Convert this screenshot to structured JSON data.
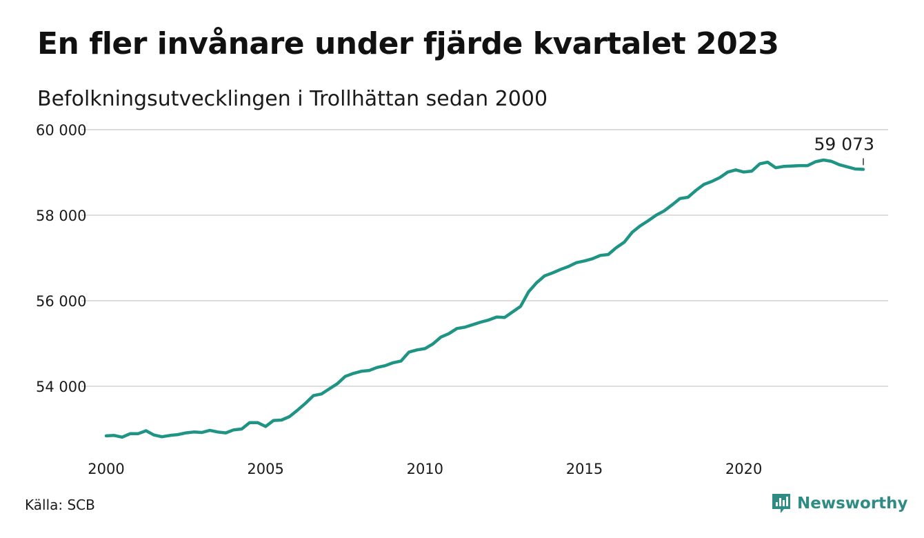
{
  "title": "En fler invånare under fjärde kvartalet 2023",
  "subtitle": "Befolkningsutvecklingen i Trollhättan sedan 2000",
  "source": "Källa: SCB",
  "brand": {
    "name": "Newsworthy",
    "icon": "newsworthy-logo-icon",
    "color": "#2f8c84"
  },
  "chart_data": {
    "type": "line",
    "title": "En fler invånare under fjärde kvartalet 2023",
    "subtitle": "Befolkningsutvecklingen i Trollhättan sedan 2000",
    "xlabel": "",
    "ylabel": "",
    "xlim": [
      2000,
      2024
    ],
    "ylim": [
      52500,
      60000
    ],
    "xticks": [
      2000,
      2005,
      2010,
      2015,
      2020
    ],
    "xtick_labels": [
      "2000",
      "2005",
      "2010",
      "2015",
      "2020"
    ],
    "yticks": [
      54000,
      56000,
      58000,
      60000
    ],
    "ytick_labels": [
      "54 000",
      "56 000",
      "58 000",
      "60 000"
    ],
    "grid": "horizontal",
    "line_color": "#1f9484",
    "annotation": {
      "x": 2023.75,
      "y": 59073,
      "label": "59 073"
    },
    "series": [
      {
        "x": [
          2000.0,
          2000.25,
          2000.5,
          2000.75,
          2001.0,
          2001.25,
          2001.5,
          2001.75,
          2002.0,
          2002.25,
          2002.5,
          2002.75,
          2003.0,
          2003.25,
          2003.5,
          2003.75,
          2004.0,
          2004.25,
          2004.5,
          2004.75,
          2005.0,
          2005.25,
          2005.5,
          2005.75,
          2006.0,
          2006.25,
          2006.5,
          2006.75,
          2007.0,
          2007.25,
          2007.5,
          2007.75,
          2008.0,
          2008.25,
          2008.5,
          2008.75,
          2009.0,
          2009.25,
          2009.5,
          2009.75,
          2010.0,
          2010.25,
          2010.5,
          2010.75,
          2011.0,
          2011.25,
          2011.5,
          2011.75,
          2012.0,
          2012.25,
          2012.5,
          2012.75,
          2013.0,
          2013.25,
          2013.5,
          2013.75,
          2014.0,
          2014.25,
          2014.5,
          2014.75,
          2015.0,
          2015.25,
          2015.5,
          2015.75,
          2016.0,
          2016.25,
          2016.5,
          2016.75,
          2017.0,
          2017.25,
          2017.5,
          2017.75,
          2018.0,
          2018.25,
          2018.5,
          2018.75,
          2019.0,
          2019.25,
          2019.5,
          2019.75,
          2020.0,
          2020.25,
          2020.5,
          2020.75,
          2021.0,
          2021.25,
          2021.5,
          2021.75,
          2022.0,
          2022.25,
          2022.5,
          2022.75,
          2023.0,
          2023.25,
          2023.5,
          2023.75
        ],
        "values": [
          52840,
          52850,
          52810,
          52890,
          52890,
          52960,
          52860,
          52820,
          52850,
          52870,
          52910,
          52930,
          52920,
          52970,
          52930,
          52910,
          52980,
          53000,
          53150,
          53150,
          53060,
          53200,
          53210,
          53290,
          53440,
          53600,
          53780,
          53820,
          53940,
          54060,
          54230,
          54300,
          54350,
          54370,
          54440,
          54480,
          54550,
          54590,
          54800,
          54850,
          54880,
          54990,
          55150,
          55230,
          55350,
          55380,
          55440,
          55500,
          55550,
          55620,
          55610,
          55740,
          55870,
          56210,
          56420,
          56580,
          56650,
          56730,
          56800,
          56890,
          56930,
          56980,
          57060,
          57080,
          57240,
          57370,
          57600,
          57750,
          57870,
          58000,
          58100,
          58240,
          58390,
          58420,
          58580,
          58720,
          58790,
          58880,
          59010,
          59060,
          59010,
          59030,
          59200,
          59240,
          59110,
          59140,
          59150,
          59160,
          59160,
          59250,
          59290,
          59260,
          59180,
          59130,
          59080,
          59073
        ]
      }
    ]
  }
}
